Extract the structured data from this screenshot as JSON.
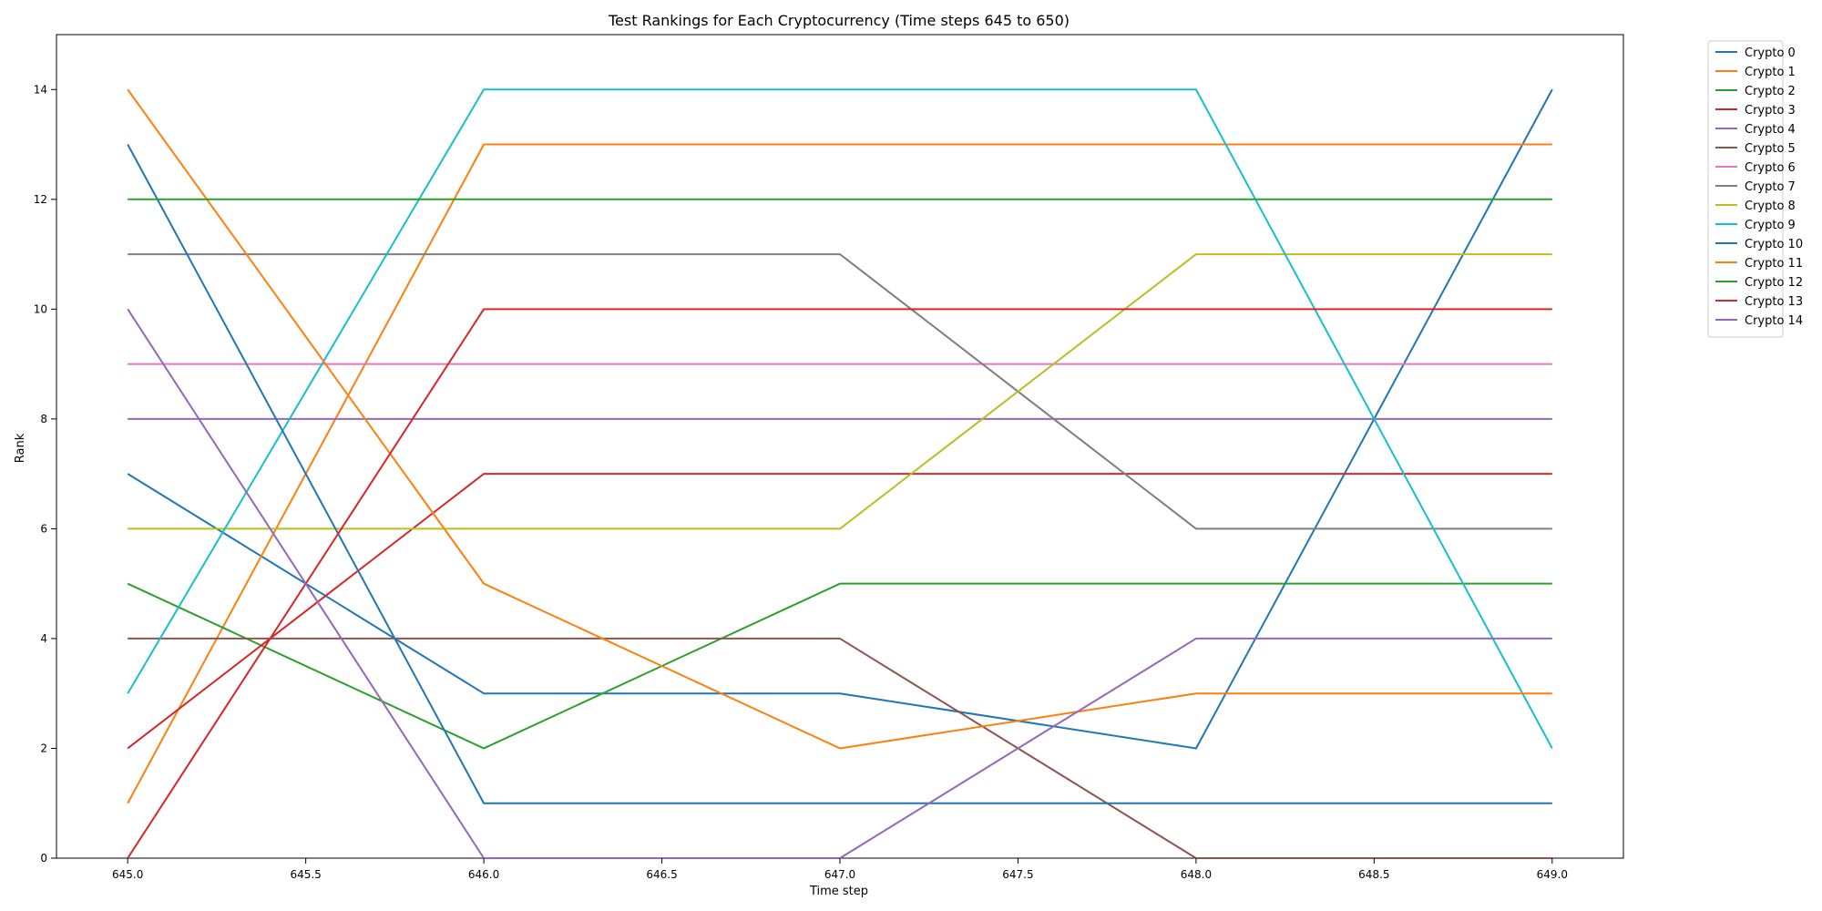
{
  "chart_data": {
    "type": "line",
    "title": "Test Rankings for Each Cryptocurrency (Time steps 645 to 650)",
    "xlabel": "Time step",
    "ylabel": "Rank",
    "xlim": [
      644.8,
      649.2
    ],
    "ylim": [
      0,
      15
    ],
    "x": [
      645.0,
      646.0,
      647.0,
      648.0,
      649.0
    ],
    "x_ticks": [
      645.0,
      645.5,
      646.0,
      646.5,
      647.0,
      647.5,
      648.0,
      648.5,
      649.0
    ],
    "x_tick_labels": [
      "645.0",
      "645.5",
      "646.0",
      "646.5",
      "647.0",
      "647.5",
      "648.0",
      "648.5",
      "649.0"
    ],
    "y_ticks": [
      0,
      2,
      4,
      6,
      8,
      10,
      12,
      14
    ],
    "y_tick_labels": [
      "0",
      "2",
      "4",
      "6",
      "8",
      "10",
      "12",
      "14"
    ],
    "grid": false,
    "legend_position": "outside-top-right",
    "series": [
      {
        "name": "Crypto 0",
        "color": "#1f77b4",
        "values": [
          7,
          3,
          3,
          2,
          14
        ]
      },
      {
        "name": "Crypto 1",
        "color": "#ff7f0e",
        "values": [
          1,
          13,
          13,
          13,
          13
        ]
      },
      {
        "name": "Crypto 2",
        "color": "#2ca02c",
        "values": [
          5,
          2,
          5,
          5,
          5
        ]
      },
      {
        "name": "Crypto 3",
        "color": "#d62728",
        "values": [
          2,
          7,
          7,
          7,
          7
        ]
      },
      {
        "name": "Crypto 4",
        "color": "#9467bd",
        "values": [
          8,
          8,
          8,
          8,
          8
        ]
      },
      {
        "name": "Crypto 5",
        "color": "#8c564b",
        "values": [
          4,
          4,
          4,
          0,
          0
        ]
      },
      {
        "name": "Crypto 6",
        "color": "#e377c2",
        "values": [
          9,
          9,
          9,
          9,
          9
        ]
      },
      {
        "name": "Crypto 7",
        "color": "#7f7f7f",
        "values": [
          11,
          11,
          11,
          6,
          6
        ]
      },
      {
        "name": "Crypto 8",
        "color": "#bcbd22",
        "values": [
          6,
          6,
          6,
          11,
          11
        ]
      },
      {
        "name": "Crypto 9",
        "color": "#17becf",
        "values": [
          3,
          14,
          14,
          14,
          2
        ]
      },
      {
        "name": "Crypto 10",
        "color": "#1f77b4",
        "values": [
          13,
          1,
          1,
          1,
          1
        ]
      },
      {
        "name": "Crypto 11",
        "color": "#ff7f0e",
        "values": [
          14,
          5,
          2,
          3,
          3
        ]
      },
      {
        "name": "Crypto 12",
        "color": "#2ca02c",
        "values": [
          12,
          12,
          12,
          12,
          12
        ]
      },
      {
        "name": "Crypto 13",
        "color": "#d62728",
        "values": [
          0,
          10,
          10,
          10,
          10
        ]
      },
      {
        "name": "Crypto 14",
        "color": "#9467bd",
        "values": [
          10,
          0,
          0,
          4,
          4
        ]
      }
    ]
  }
}
